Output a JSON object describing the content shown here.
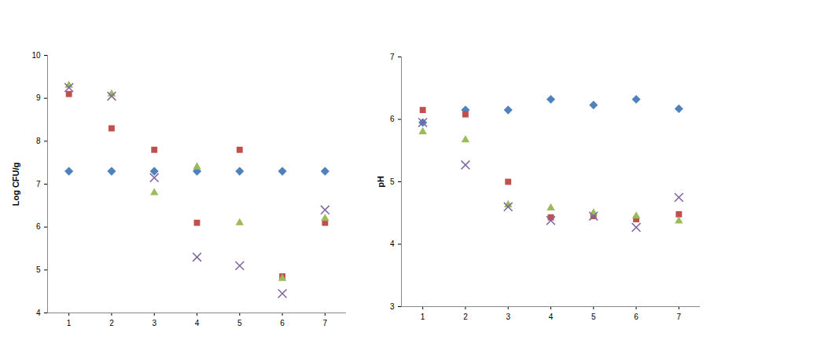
{
  "chart_data": [
    {
      "type": "scatter",
      "y_label": "Log CFU/g",
      "x": [
        1,
        2,
        3,
        4,
        5,
        6,
        7
      ],
      "xlim": [
        0.5,
        7.5
      ],
      "xticks": [
        1,
        2,
        3,
        4,
        5,
        6,
        7
      ],
      "ylim": [
        4,
        10
      ],
      "yticks": [
        4,
        5,
        6,
        7,
        8,
        9,
        10
      ],
      "grid": false,
      "series": [
        {
          "color": "#4f81bd",
          "marker": "diamond",
          "values": [
            7.3,
            7.3,
            7.3,
            7.3,
            7.3,
            7.3,
            7.3
          ]
        },
        {
          "color": "#c0504d",
          "marker": "square",
          "values": [
            9.1,
            8.3,
            7.8,
            6.1,
            7.8,
            4.85,
            6.1
          ]
        },
        {
          "color": "#9bbb59",
          "marker": "triangle",
          "values": [
            9.3,
            9.1,
            6.8,
            7.4,
            6.1,
            4.8,
            6.2
          ]
        },
        {
          "color": "#8064a2",
          "marker": "x",
          "values": [
            9.25,
            9.05,
            7.15,
            5.3,
            5.1,
            4.45,
            6.4
          ]
        }
      ]
    },
    {
      "type": "scatter",
      "y_label": "pH",
      "x": [
        1,
        2,
        3,
        4,
        5,
        6,
        7
      ],
      "xlim": [
        0.5,
        7.5
      ],
      "xticks": [
        1,
        2,
        3,
        4,
        5,
        6,
        7
      ],
      "ylim": [
        3,
        7
      ],
      "yticks": [
        3,
        4,
        5,
        6,
        7
      ],
      "grid": false,
      "series": [
        {
          "color": "#4f81bd",
          "marker": "diamond",
          "values": [
            5.95,
            6.15,
            6.15,
            6.32,
            6.23,
            6.32,
            6.17
          ]
        },
        {
          "color": "#c0504d",
          "marker": "square",
          "values": [
            6.15,
            6.08,
            5.0,
            4.43,
            4.45,
            4.4,
            4.48
          ]
        },
        {
          "color": "#9bbb59",
          "marker": "triangle",
          "values": [
            5.8,
            5.67,
            4.63,
            4.58,
            4.5,
            4.45,
            4.37
          ]
        },
        {
          "color": "#8064a2",
          "marker": "x",
          "values": [
            5.95,
            5.27,
            4.6,
            4.38,
            4.45,
            4.27,
            4.75
          ]
        }
      ]
    }
  ]
}
